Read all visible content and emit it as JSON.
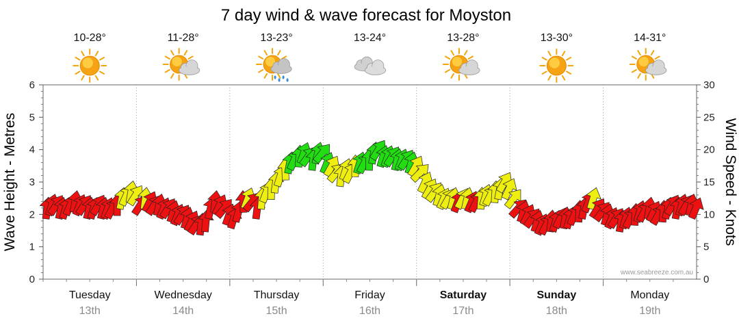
{
  "chart_data": {
    "type": "line",
    "title": "7 day wind & wave forecast for Moyston",
    "ylabel_left": "Wave Height - Metres",
    "ylabel_right": "Wind Speed - Knots",
    "ylim_left": [
      0,
      6
    ],
    "ylim_right": [
      0,
      30
    ],
    "yticks_left": [
      "0",
      "1",
      "2",
      "3",
      "4",
      "5",
      "6"
    ],
    "yticks_right": [
      "0",
      "5",
      "10",
      "15",
      "20",
      "25",
      "30"
    ],
    "grid": "vertical dotted at day boundaries",
    "watermark": "www.seabreeze.com.au",
    "days": [
      {
        "name": "Tuesday",
        "date": "13th",
        "temp": "10-28°",
        "icon": "sunny-icon",
        "weekend": false
      },
      {
        "name": "Wednesday",
        "date": "14th",
        "temp": "11-28°",
        "icon": "partly-cloudy-icon",
        "weekend": false
      },
      {
        "name": "Thursday",
        "date": "15th",
        "temp": "13-23°",
        "icon": "showers-icon",
        "weekend": false
      },
      {
        "name": "Friday",
        "date": "16th",
        "temp": "13-24°",
        "icon": "cloudy-icon",
        "weekend": false
      },
      {
        "name": "Saturday",
        "date": "17th",
        "temp": "13-28°",
        "icon": "partly-cloudy-icon",
        "weekend": true
      },
      {
        "name": "Sunday",
        "date": "18th",
        "temp": "13-30°",
        "icon": "sunny-icon",
        "weekend": true
      },
      {
        "name": "Monday",
        "date": "19th",
        "temp": "14-31°",
        "icon": "partly-cloudy-icon",
        "weekend": false
      }
    ],
    "wind_color_scale": {
      "low": "#ee1111",
      "mid": "#eeee11",
      "high": "#22dd11"
    },
    "series": [
      {
        "name": "Wind Speed - Knots",
        "x_unit": "days from start of forecast",
        "x": [
          0.0,
          0.05,
          0.1,
          0.15,
          0.2,
          0.25,
          0.3,
          0.35,
          0.4,
          0.45,
          0.5,
          0.55,
          0.6,
          0.65,
          0.7,
          0.75,
          0.8,
          0.85,
          0.9,
          0.95,
          1.0,
          1.05,
          1.1,
          1.15,
          1.2,
          1.25,
          1.3,
          1.35,
          1.4,
          1.45,
          1.5,
          1.55,
          1.6,
          1.65,
          1.7,
          1.75,
          1.8,
          1.85,
          1.9,
          1.95,
          2.0,
          2.05,
          2.1,
          2.15,
          2.2,
          2.25,
          2.3,
          2.35,
          2.4,
          2.45,
          2.5,
          2.55,
          2.6,
          2.65,
          2.7,
          2.75,
          2.8,
          2.85,
          2.9,
          2.95,
          3.0,
          3.05,
          3.1,
          3.15,
          3.2,
          3.25,
          3.3,
          3.35,
          3.4,
          3.45,
          3.5,
          3.55,
          3.6,
          3.65,
          3.7,
          3.75,
          3.8,
          3.85,
          3.9,
          3.95,
          4.0,
          4.05,
          4.1,
          4.15,
          4.2,
          4.25,
          4.3,
          4.35,
          4.4,
          4.45,
          4.5,
          4.55,
          4.6,
          4.65,
          4.7,
          4.75,
          4.8,
          4.85,
          4.9,
          4.95,
          5.0,
          5.05,
          5.1,
          5.15,
          5.2,
          5.25,
          5.3,
          5.35,
          5.4,
          5.45,
          5.5,
          5.55,
          5.6,
          5.65,
          5.7,
          5.75,
          5.8,
          5.85,
          5.9,
          5.95,
          6.0,
          6.05,
          6.1,
          6.15,
          6.2,
          6.25,
          6.3,
          6.35,
          6.4,
          6.45,
          6.5,
          6.55,
          6.6,
          6.65,
          6.7,
          6.75,
          6.8,
          6.85,
          6.9,
          6.95
        ],
        "values": [
          11.0,
          11.5,
          11.5,
          11.0,
          11.0,
          11.5,
          12.0,
          11.5,
          11.5,
          11.0,
          11.0,
          11.5,
          11.0,
          11.0,
          11.0,
          11.5,
          12.5,
          13.0,
          13.5,
          13.0,
          11.5,
          12.5,
          12.0,
          11.5,
          11.5,
          11.0,
          11.0,
          10.5,
          10.0,
          10.0,
          9.5,
          9.0,
          8.5,
          8.5,
          9.0,
          11.0,
          12.0,
          11.5,
          11.0,
          10.0,
          9.5,
          10.5,
          12.0,
          12.5,
          12.0,
          11.0,
          12.5,
          13.5,
          14.0,
          15.0,
          16.0,
          17.0,
          18.0,
          18.5,
          19.0,
          19.5,
          19.0,
          18.5,
          19.5,
          19.5,
          18.0,
          17.5,
          16.5,
          16.0,
          17.0,
          16.5,
          17.5,
          18.0,
          18.0,
          18.5,
          19.5,
          20.0,
          19.0,
          19.0,
          19.0,
          18.5,
          18.5,
          18.5,
          18.0,
          17.5,
          16.5,
          15.0,
          14.0,
          13.5,
          13.0,
          12.5,
          12.5,
          12.5,
          12.0,
          12.5,
          12.5,
          12.0,
          12.0,
          12.5,
          13.0,
          13.0,
          13.5,
          14.0,
          15.0,
          14.0,
          12.5,
          11.0,
          10.5,
          10.0,
          9.5,
          9.0,
          8.5,
          8.5,
          9.0,
          9.0,
          9.5,
          9.5,
          9.5,
          10.0,
          10.5,
          11.0,
          12.0,
          12.5,
          11.0,
          10.5,
          10.0,
          9.5,
          9.5,
          9.0,
          9.5,
          9.5,
          10.0,
          10.5,
          10.5,
          11.0,
          10.5,
          10.0,
          10.5,
          11.0,
          11.5,
          11.0,
          11.5,
          11.5,
          11.5,
          11.0
        ]
      }
    ]
  }
}
